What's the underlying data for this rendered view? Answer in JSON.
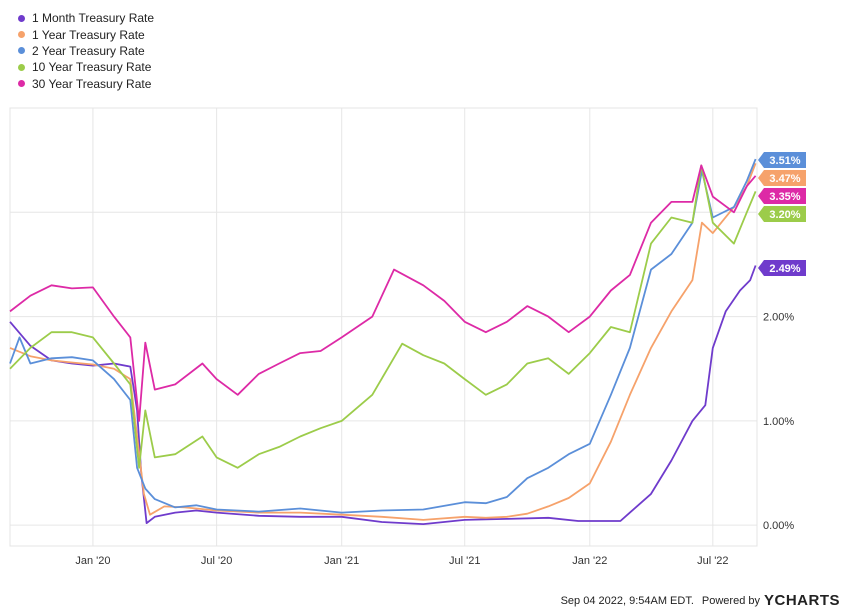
{
  "chart_data": {
    "type": "line",
    "ylim": [
      -0.2,
      4.0
    ],
    "xlim": [
      "2019-09-01",
      "2022-09-04"
    ],
    "y_ticks": [
      0,
      1,
      2
    ],
    "y_tick_labels": [
      "0.00%",
      "1.00%",
      "2.00%"
    ],
    "x_ticks": [
      "2020-01-01",
      "2020-07-01",
      "2021-01-01",
      "2021-07-01",
      "2022-01-01",
      "2022-07-01"
    ],
    "x_tick_labels": [
      "Jan '20",
      "Jul '20",
      "Jan '21",
      "Jul '21",
      "Jan '22",
      "Jul '22"
    ],
    "grid": true,
    "legend_position": "top-left",
    "series": [
      {
        "name": "1 Month Treasury Rate",
        "color": "#6f3bcc",
        "last_label": "2.49%",
        "points": [
          [
            "2019-09-01",
            1.95
          ],
          [
            "2019-10-01",
            1.72
          ],
          [
            "2019-11-01",
            1.58
          ],
          [
            "2019-12-01",
            1.55
          ],
          [
            "2020-01-01",
            1.53
          ],
          [
            "2020-02-01",
            1.55
          ],
          [
            "2020-02-25",
            1.52
          ],
          [
            "2020-03-06",
            1.1
          ],
          [
            "2020-03-12",
            0.5
          ],
          [
            "2020-03-20",
            0.02
          ],
          [
            "2020-04-01",
            0.08
          ],
          [
            "2020-05-01",
            0.12
          ],
          [
            "2020-06-01",
            0.14
          ],
          [
            "2020-07-01",
            0.12
          ],
          [
            "2020-09-01",
            0.09
          ],
          [
            "2020-11-01",
            0.08
          ],
          [
            "2021-01-01",
            0.08
          ],
          [
            "2021-03-01",
            0.03
          ],
          [
            "2021-05-01",
            0.01
          ],
          [
            "2021-07-01",
            0.05
          ],
          [
            "2021-09-01",
            0.06
          ],
          [
            "2021-11-01",
            0.07
          ],
          [
            "2021-12-15",
            0.04
          ],
          [
            "2022-01-15",
            0.04
          ],
          [
            "2022-02-15",
            0.04
          ],
          [
            "2022-03-01",
            0.12
          ],
          [
            "2022-04-01",
            0.3
          ],
          [
            "2022-05-01",
            0.62
          ],
          [
            "2022-06-01",
            1.0
          ],
          [
            "2022-06-20",
            1.15
          ],
          [
            "2022-07-01",
            1.7
          ],
          [
            "2022-07-20",
            2.05
          ],
          [
            "2022-08-10",
            2.25
          ],
          [
            "2022-08-25",
            2.35
          ],
          [
            "2022-09-02",
            2.49
          ]
        ]
      },
      {
        "name": "1 Year Treasury Rate",
        "color": "#f6a26b",
        "last_label": "3.47%",
        "points": [
          [
            "2019-09-01",
            1.7
          ],
          [
            "2019-10-01",
            1.62
          ],
          [
            "2019-11-01",
            1.58
          ],
          [
            "2019-12-01",
            1.56
          ],
          [
            "2020-01-01",
            1.54
          ],
          [
            "2020-02-01",
            1.5
          ],
          [
            "2020-02-25",
            1.4
          ],
          [
            "2020-03-06",
            0.85
          ],
          [
            "2020-03-16",
            0.3
          ],
          [
            "2020-03-25",
            0.1
          ],
          [
            "2020-04-15",
            0.18
          ],
          [
            "2020-05-15",
            0.17
          ],
          [
            "2020-07-01",
            0.14
          ],
          [
            "2020-09-01",
            0.12
          ],
          [
            "2020-11-01",
            0.12
          ],
          [
            "2021-01-01",
            0.1
          ],
          [
            "2021-03-01",
            0.08
          ],
          [
            "2021-05-01",
            0.05
          ],
          [
            "2021-07-01",
            0.08
          ],
          [
            "2021-08-01",
            0.07
          ],
          [
            "2021-09-01",
            0.08
          ],
          [
            "2021-10-01",
            0.11
          ],
          [
            "2021-11-01",
            0.18
          ],
          [
            "2021-12-01",
            0.26
          ],
          [
            "2022-01-01",
            0.4
          ],
          [
            "2022-02-01",
            0.8
          ],
          [
            "2022-03-01",
            1.25
          ],
          [
            "2022-04-01",
            1.7
          ],
          [
            "2022-05-01",
            2.05
          ],
          [
            "2022-06-01",
            2.35
          ],
          [
            "2022-06-15",
            2.9
          ],
          [
            "2022-07-01",
            2.8
          ],
          [
            "2022-08-01",
            3.05
          ],
          [
            "2022-08-20",
            3.25
          ],
          [
            "2022-09-02",
            3.47
          ]
        ]
      },
      {
        "name": "2 Year Treasury Rate",
        "color": "#5b8fd9",
        "last_label": "3.51%",
        "points": [
          [
            "2019-09-01",
            1.55
          ],
          [
            "2019-09-15",
            1.8
          ],
          [
            "2019-10-01",
            1.55
          ],
          [
            "2019-11-01",
            1.6
          ],
          [
            "2019-12-01",
            1.61
          ],
          [
            "2020-01-01",
            1.58
          ],
          [
            "2020-02-01",
            1.4
          ],
          [
            "2020-02-25",
            1.2
          ],
          [
            "2020-03-06",
            0.55
          ],
          [
            "2020-03-18",
            0.35
          ],
          [
            "2020-04-01",
            0.25
          ],
          [
            "2020-05-01",
            0.17
          ],
          [
            "2020-06-01",
            0.19
          ],
          [
            "2020-07-01",
            0.15
          ],
          [
            "2020-09-01",
            0.13
          ],
          [
            "2020-11-01",
            0.16
          ],
          [
            "2021-01-01",
            0.12
          ],
          [
            "2021-03-01",
            0.14
          ],
          [
            "2021-05-01",
            0.15
          ],
          [
            "2021-07-01",
            0.22
          ],
          [
            "2021-08-01",
            0.21
          ],
          [
            "2021-09-01",
            0.27
          ],
          [
            "2021-10-01",
            0.45
          ],
          [
            "2021-11-01",
            0.55
          ],
          [
            "2021-12-01",
            0.68
          ],
          [
            "2022-01-01",
            0.78
          ],
          [
            "2022-02-01",
            1.25
          ],
          [
            "2022-03-01",
            1.7
          ],
          [
            "2022-04-01",
            2.45
          ],
          [
            "2022-05-01",
            2.6
          ],
          [
            "2022-06-01",
            2.9
          ],
          [
            "2022-06-15",
            3.4
          ],
          [
            "2022-07-01",
            2.95
          ],
          [
            "2022-08-01",
            3.05
          ],
          [
            "2022-08-20",
            3.3
          ],
          [
            "2022-09-02",
            3.51
          ]
        ]
      },
      {
        "name": "10 Year Treasury Rate",
        "color": "#9ccc4a",
        "last_label": "3.20%",
        "points": [
          [
            "2019-09-01",
            1.5
          ],
          [
            "2019-10-01",
            1.7
          ],
          [
            "2019-11-01",
            1.85
          ],
          [
            "2019-12-01",
            1.85
          ],
          [
            "2020-01-01",
            1.8
          ],
          [
            "2020-02-01",
            1.55
          ],
          [
            "2020-02-25",
            1.35
          ],
          [
            "2020-03-09",
            0.55
          ],
          [
            "2020-03-18",
            1.1
          ],
          [
            "2020-04-01",
            0.65
          ],
          [
            "2020-05-01",
            0.68
          ],
          [
            "2020-06-10",
            0.85
          ],
          [
            "2020-07-01",
            0.65
          ],
          [
            "2020-08-01",
            0.55
          ],
          [
            "2020-09-01",
            0.68
          ],
          [
            "2020-10-01",
            0.75
          ],
          [
            "2020-11-01",
            0.85
          ],
          [
            "2020-12-01",
            0.93
          ],
          [
            "2021-01-01",
            1.0
          ],
          [
            "2021-02-15",
            1.25
          ],
          [
            "2021-03-31",
            1.74
          ],
          [
            "2021-05-01",
            1.63
          ],
          [
            "2021-06-01",
            1.55
          ],
          [
            "2021-07-01",
            1.4
          ],
          [
            "2021-08-01",
            1.25
          ],
          [
            "2021-09-01",
            1.35
          ],
          [
            "2021-10-01",
            1.55
          ],
          [
            "2021-11-01",
            1.6
          ],
          [
            "2021-12-01",
            1.45
          ],
          [
            "2022-01-01",
            1.65
          ],
          [
            "2022-02-01",
            1.9
          ],
          [
            "2022-03-01",
            1.85
          ],
          [
            "2022-04-01",
            2.7
          ],
          [
            "2022-05-01",
            2.95
          ],
          [
            "2022-06-01",
            2.9
          ],
          [
            "2022-06-14",
            3.45
          ],
          [
            "2022-07-01",
            2.9
          ],
          [
            "2022-08-01",
            2.7
          ],
          [
            "2022-08-20",
            3.0
          ],
          [
            "2022-09-02",
            3.2
          ]
        ]
      },
      {
        "name": "30 Year Treasury Rate",
        "color": "#dd2aa6",
        "last_label": "3.35%",
        "points": [
          [
            "2019-09-01",
            2.05
          ],
          [
            "2019-10-01",
            2.2
          ],
          [
            "2019-11-01",
            2.3
          ],
          [
            "2019-12-01",
            2.27
          ],
          [
            "2020-01-01",
            2.28
          ],
          [
            "2020-02-01",
            2.0
          ],
          [
            "2020-02-25",
            1.8
          ],
          [
            "2020-03-09",
            1.0
          ],
          [
            "2020-03-18",
            1.75
          ],
          [
            "2020-04-01",
            1.3
          ],
          [
            "2020-05-01",
            1.35
          ],
          [
            "2020-06-10",
            1.55
          ],
          [
            "2020-07-01",
            1.4
          ],
          [
            "2020-08-01",
            1.25
          ],
          [
            "2020-09-01",
            1.45
          ],
          [
            "2020-10-01",
            1.55
          ],
          [
            "2020-11-01",
            1.65
          ],
          [
            "2020-12-01",
            1.67
          ],
          [
            "2021-01-01",
            1.8
          ],
          [
            "2021-02-15",
            2.0
          ],
          [
            "2021-03-19",
            2.45
          ],
          [
            "2021-05-01",
            2.3
          ],
          [
            "2021-06-01",
            2.15
          ],
          [
            "2021-07-01",
            1.95
          ],
          [
            "2021-08-01",
            1.85
          ],
          [
            "2021-09-01",
            1.95
          ],
          [
            "2021-10-01",
            2.1
          ],
          [
            "2021-11-01",
            2.0
          ],
          [
            "2021-12-01",
            1.85
          ],
          [
            "2022-01-01",
            2.0
          ],
          [
            "2022-02-01",
            2.25
          ],
          [
            "2022-03-01",
            2.4
          ],
          [
            "2022-04-01",
            2.9
          ],
          [
            "2022-05-01",
            3.1
          ],
          [
            "2022-06-01",
            3.1
          ],
          [
            "2022-06-14",
            3.45
          ],
          [
            "2022-07-01",
            3.15
          ],
          [
            "2022-08-01",
            3.0
          ],
          [
            "2022-08-20",
            3.25
          ],
          [
            "2022-09-02",
            3.35
          ]
        ]
      }
    ]
  },
  "footer": {
    "timestamp": "Sep 04 2022, 9:54AM EDT.",
    "powered_by": "Powered by",
    "brand": "YCHARTS"
  }
}
